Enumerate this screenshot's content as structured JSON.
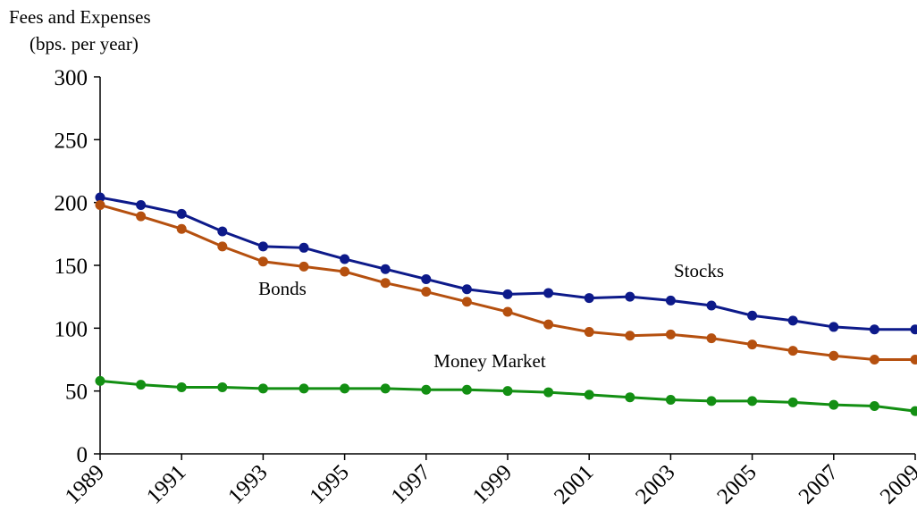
{
  "chart_data": {
    "type": "line",
    "y_label": [
      "Fees and Expenses",
      "(bps. per year)"
    ],
    "x": [
      1989,
      1990,
      1991,
      1992,
      1993,
      1994,
      1995,
      1996,
      1997,
      1998,
      1999,
      2000,
      2001,
      2002,
      2003,
      2004,
      2005,
      2006,
      2007,
      2008,
      2009
    ],
    "xlim": [
      1989,
      2009
    ],
    "xticks": [
      1989,
      1991,
      1993,
      1995,
      1997,
      1999,
      2001,
      2003,
      2005,
      2007,
      2009
    ],
    "ylim": [
      0,
      300
    ],
    "yticks": [
      0,
      50,
      100,
      150,
      200,
      250,
      300
    ],
    "series": [
      {
        "name": "Stocks",
        "color": "#0d1a8a",
        "values": [
          204,
          198,
          191,
          177,
          165,
          164,
          155,
          147,
          139,
          131,
          127,
          128,
          124,
          125,
          122,
          118,
          110,
          106,
          101,
          99,
          99
        ]
      },
      {
        "name": "Bonds",
        "color": "#b5500f",
        "values": [
          198,
          189,
          179,
          165,
          153,
          149,
          145,
          136,
          129,
          121,
          113,
          103,
          97,
          94,
          95,
          92,
          87,
          82,
          78,
          75,
          75
        ]
      },
      {
        "name": "Money Market",
        "color": "#138f13",
        "values": [
          58,
          55,
          53,
          53,
          52,
          52,
          52,
          52,
          51,
          51,
          50,
          49,
          47,
          45,
          43,
          42,
          42,
          41,
          39,
          38,
          34
        ]
      }
    ]
  }
}
